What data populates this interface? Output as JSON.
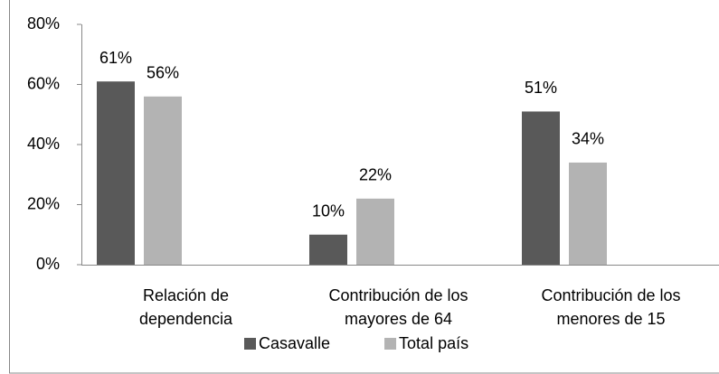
{
  "chart_data": {
    "type": "bar",
    "categories": [
      [
        "Relación de",
        "dependencia"
      ],
      [
        "Contribución de los",
        "mayores de 64"
      ],
      [
        "Contribución de los",
        "menores de 15"
      ]
    ],
    "series": [
      {
        "name": "Casavalle",
        "color": "#595959",
        "values": [
          61,
          10,
          51
        ],
        "value_labels": [
          "61%",
          "10%",
          "51%"
        ]
      },
      {
        "name": "Total país",
        "color": "#b3b3b3",
        "values": [
          56,
          22,
          34
        ],
        "value_labels": [
          "56%",
          "22%",
          "34%"
        ]
      }
    ],
    "ylim": [
      0,
      80
    ],
    "yticks": [
      {
        "value": 0,
        "label": "0%"
      },
      {
        "value": 20,
        "label": "20%"
      },
      {
        "value": 40,
        "label": "40%"
      },
      {
        "value": 60,
        "label": "60%"
      },
      {
        "value": 80,
        "label": "80%"
      }
    ],
    "grid": false,
    "legend": "bottom"
  }
}
